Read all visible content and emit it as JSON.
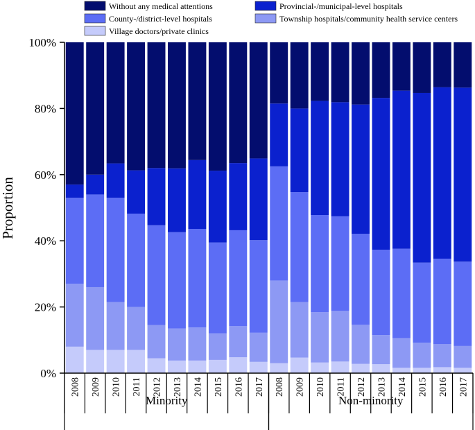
{
  "chart_data": {
    "type": "bar",
    "stacked": "100%",
    "ylabel": "Proportion",
    "ylim": [
      0,
      100
    ],
    "y_ticks": [
      "0%",
      "20%",
      "40%",
      "60%",
      "80%",
      "100%"
    ],
    "groups": [
      {
        "name": "Minority",
        "categories": [
          "2008",
          "2009",
          "2010",
          "2011",
          "2012",
          "2013",
          "2014",
          "2015",
          "2016",
          "2017"
        ]
      },
      {
        "name": "Non-minority",
        "categories": [
          "2008",
          "2009",
          "2010",
          "2011",
          "2012",
          "2013",
          "2014",
          "2015",
          "2016",
          "2017"
        ]
      }
    ],
    "series": [
      {
        "name": "Village doctors/private clinics",
        "color": "#c5cbfb",
        "values": [
          8,
          7,
          7,
          7,
          4.5,
          3.8,
          3.8,
          4,
          4.8,
          3.4,
          3,
          4.7,
          3.2,
          3.5,
          2.8,
          2.7,
          1.6,
          1.6,
          1.8,
          1.6
        ]
      },
      {
        "name": "Township hospitals/community health service centers",
        "color": "#8d99f4",
        "values": [
          19,
          19,
          14.5,
          13,
          10,
          9.7,
          10,
          8,
          9.4,
          8.8,
          25,
          16.8,
          15.2,
          15.3,
          11.8,
          8.8,
          9,
          7.6,
          7,
          6.6
        ]
      },
      {
        "name": "County-/district-level hospitals",
        "color": "#5c6df5",
        "values": [
          26,
          28,
          31.5,
          28.2,
          30.2,
          29.1,
          29.8,
          27.5,
          29,
          28,
          34.5,
          33.2,
          29.4,
          28.6,
          27.5,
          25.8,
          27,
          24.2,
          25.8,
          25.5
        ]
      },
      {
        "name": "Provincial-/municipal-level hospitals",
        "color": "#0b21ce",
        "values": [
          4,
          6,
          10.4,
          13.1,
          17.3,
          19.3,
          20.8,
          21.7,
          20.3,
          24.7,
          19,
          25.3,
          34.5,
          34.5,
          39.1,
          45.9,
          47.8,
          51.3,
          51.8,
          52.6
        ]
      },
      {
        "name": "Without any medical attentions",
        "color": "#030d6e",
        "values": [
          43,
          40,
          36.6,
          38.7,
          38,
          38.1,
          35.6,
          38.8,
          36.5,
          35.1,
          18.5,
          20,
          17.7,
          18.1,
          18.8,
          16.8,
          14.6,
          15.3,
          13.6,
          13.7
        ]
      }
    ],
    "legend": {
      "position": "top",
      "columns": 2,
      "order": [
        "Without any medical attentions",
        "Provincial-/municipal-level hospitals",
        "County-/district-level hospitals",
        "Township hospitals/community health service centers",
        "Village doctors/private clinics"
      ]
    }
  }
}
